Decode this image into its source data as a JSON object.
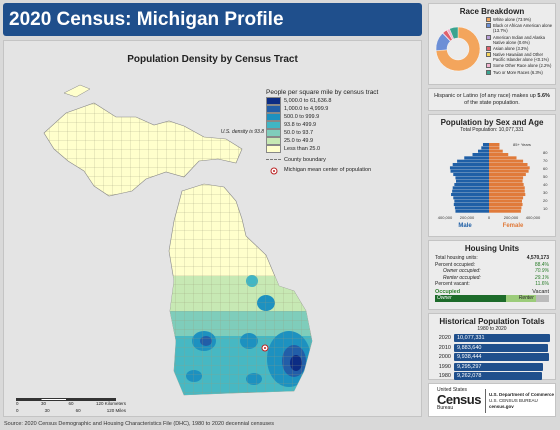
{
  "header": {
    "title": "2020 Census: Michigan Profile"
  },
  "map": {
    "title": "Population Density by Census Tract",
    "legend_title": "People per square mile by census tract",
    "classes": [
      {
        "label": "5,000.0 to 61,636.8",
        "color": "#0c2c84"
      },
      {
        "label": "1,000.0 to 4,999.9",
        "color": "#225ea8"
      },
      {
        "label": "500.0 to 999.9",
        "color": "#1d91c0"
      },
      {
        "label": "93.8 to 499.9",
        "color": "#41b6c4"
      },
      {
        "label": "50.0 to 93.7",
        "color": "#7fcdbb"
      },
      {
        "label": "25.0 to 49.9",
        "color": "#c7e9b4"
      },
      {
        "label": "Less than 25.0",
        "color": "#ffffcc"
      }
    ],
    "county_boundary_label": "County boundary",
    "mean_center_label": "Michigan mean center of population",
    "us_density_label": "U.S. density is 93.8",
    "scale_km": [
      "0",
      "30",
      "60",
      "120 Kilometers"
    ],
    "scale_mi": [
      "0",
      "30",
      "60",
      "120 Miles"
    ]
  },
  "race": {
    "title": "Race Breakdown",
    "items": [
      {
        "label": "White alone (73.9%)",
        "value": 73.9,
        "color": "#f3a55c"
      },
      {
        "label": "Black or African American alone (13.7%)",
        "value": 13.7,
        "color": "#6c8fd6"
      },
      {
        "label": "American Indian and Alaska Native alone (0.6%)",
        "value": 0.6,
        "color": "#b9a0d8"
      },
      {
        "label": "Asian alone (3.3%)",
        "value": 3.3,
        "color": "#e0616b"
      },
      {
        "label": "Native Hawaiian and Other Pacific Islander alone (<0.1%)",
        "value": 0.1,
        "color": "#f6d55c"
      },
      {
        "label": "Some Other Race alone (2.2%)",
        "value": 2.2,
        "color": "#f2b4cf"
      },
      {
        "label": "Two or More Races (6.3%)",
        "value": 6.3,
        "color": "#3aa38f"
      }
    ]
  },
  "hispanic": {
    "prefix": "Hispanic or Latino (of any race) makes up ",
    "value": "5.6%",
    "suffix": " of the state population."
  },
  "pyramid": {
    "title": "Population by Sex and Age",
    "total_label": "Total Population: 10,077,331",
    "age_labels": [
      "85+ Years",
      "80",
      "70",
      "60",
      "50",
      "40",
      "30",
      "20",
      "10"
    ],
    "x_ticks": [
      "400,000",
      "200,000",
      "0",
      "200,000",
      "400,000"
    ],
    "male_label": "Male",
    "female_label": "Female",
    "male_color": "#1f5fa6",
    "female_color": "#e07a3a",
    "male": [
      305000,
      310000,
      320000,
      315000,
      325000,
      345000,
      335000,
      330000,
      315000,
      300000,
      305000,
      325000,
      350000,
      355000,
      330000,
      290000,
      225000,
      150000,
      100000,
      70000,
      55000
    ],
    "female": [
      290000,
      295000,
      305000,
      300000,
      310000,
      330000,
      325000,
      325000,
      315000,
      305000,
      310000,
      335000,
      360000,
      370000,
      350000,
      310000,
      250000,
      175000,
      125000,
      95000,
      95000
    ]
  },
  "housing": {
    "title": "Housing Units",
    "rows": [
      {
        "label": "Total housing units:",
        "value": "4,570,173",
        "sub": false
      },
      {
        "label": "Percent occupied:",
        "value": "88.4%",
        "sub": false
      },
      {
        "label": "Owner occupied:",
        "value": "70.9%",
        "sub": true
      },
      {
        "label": "Renter occupied:",
        "value": "29.1%",
        "sub": true
      },
      {
        "label": "Percent vacant:",
        "value": "11.6%",
        "sub": false
      }
    ],
    "occupied_label": "Occupied",
    "vacant_label": "Vacant",
    "owner_label": "Owner",
    "renter_label": "Renter",
    "occupied_pct": 88.4,
    "owner_pct": 70.9
  },
  "history": {
    "title": "Historical Population Totals",
    "subtitle": "1980 to 2020",
    "rows": [
      {
        "year": "2020",
        "value": "10,077,331",
        "num": 10077331
      },
      {
        "year": "2010",
        "value": "9,883,640",
        "num": 9883640
      },
      {
        "year": "2000",
        "value": "9,938,444",
        "num": 9938444
      },
      {
        "year": "1990",
        "value": "9,295,297",
        "num": 9295297
      },
      {
        "year": "1980",
        "value": "9,262,078",
        "num": 9262078
      }
    ]
  },
  "logo": {
    "united_states": "United States",
    "census": "Census",
    "bureau": "Bureau",
    "dept": "U.S. Department of Commerce",
    "dept2": "U.S. CENSUS BUREAU",
    "url": "census.gov"
  },
  "source": "Source: 2020 Census Demographic and Housing Characteristics File (DHC), 1980 to 2020 decennial censuses"
}
